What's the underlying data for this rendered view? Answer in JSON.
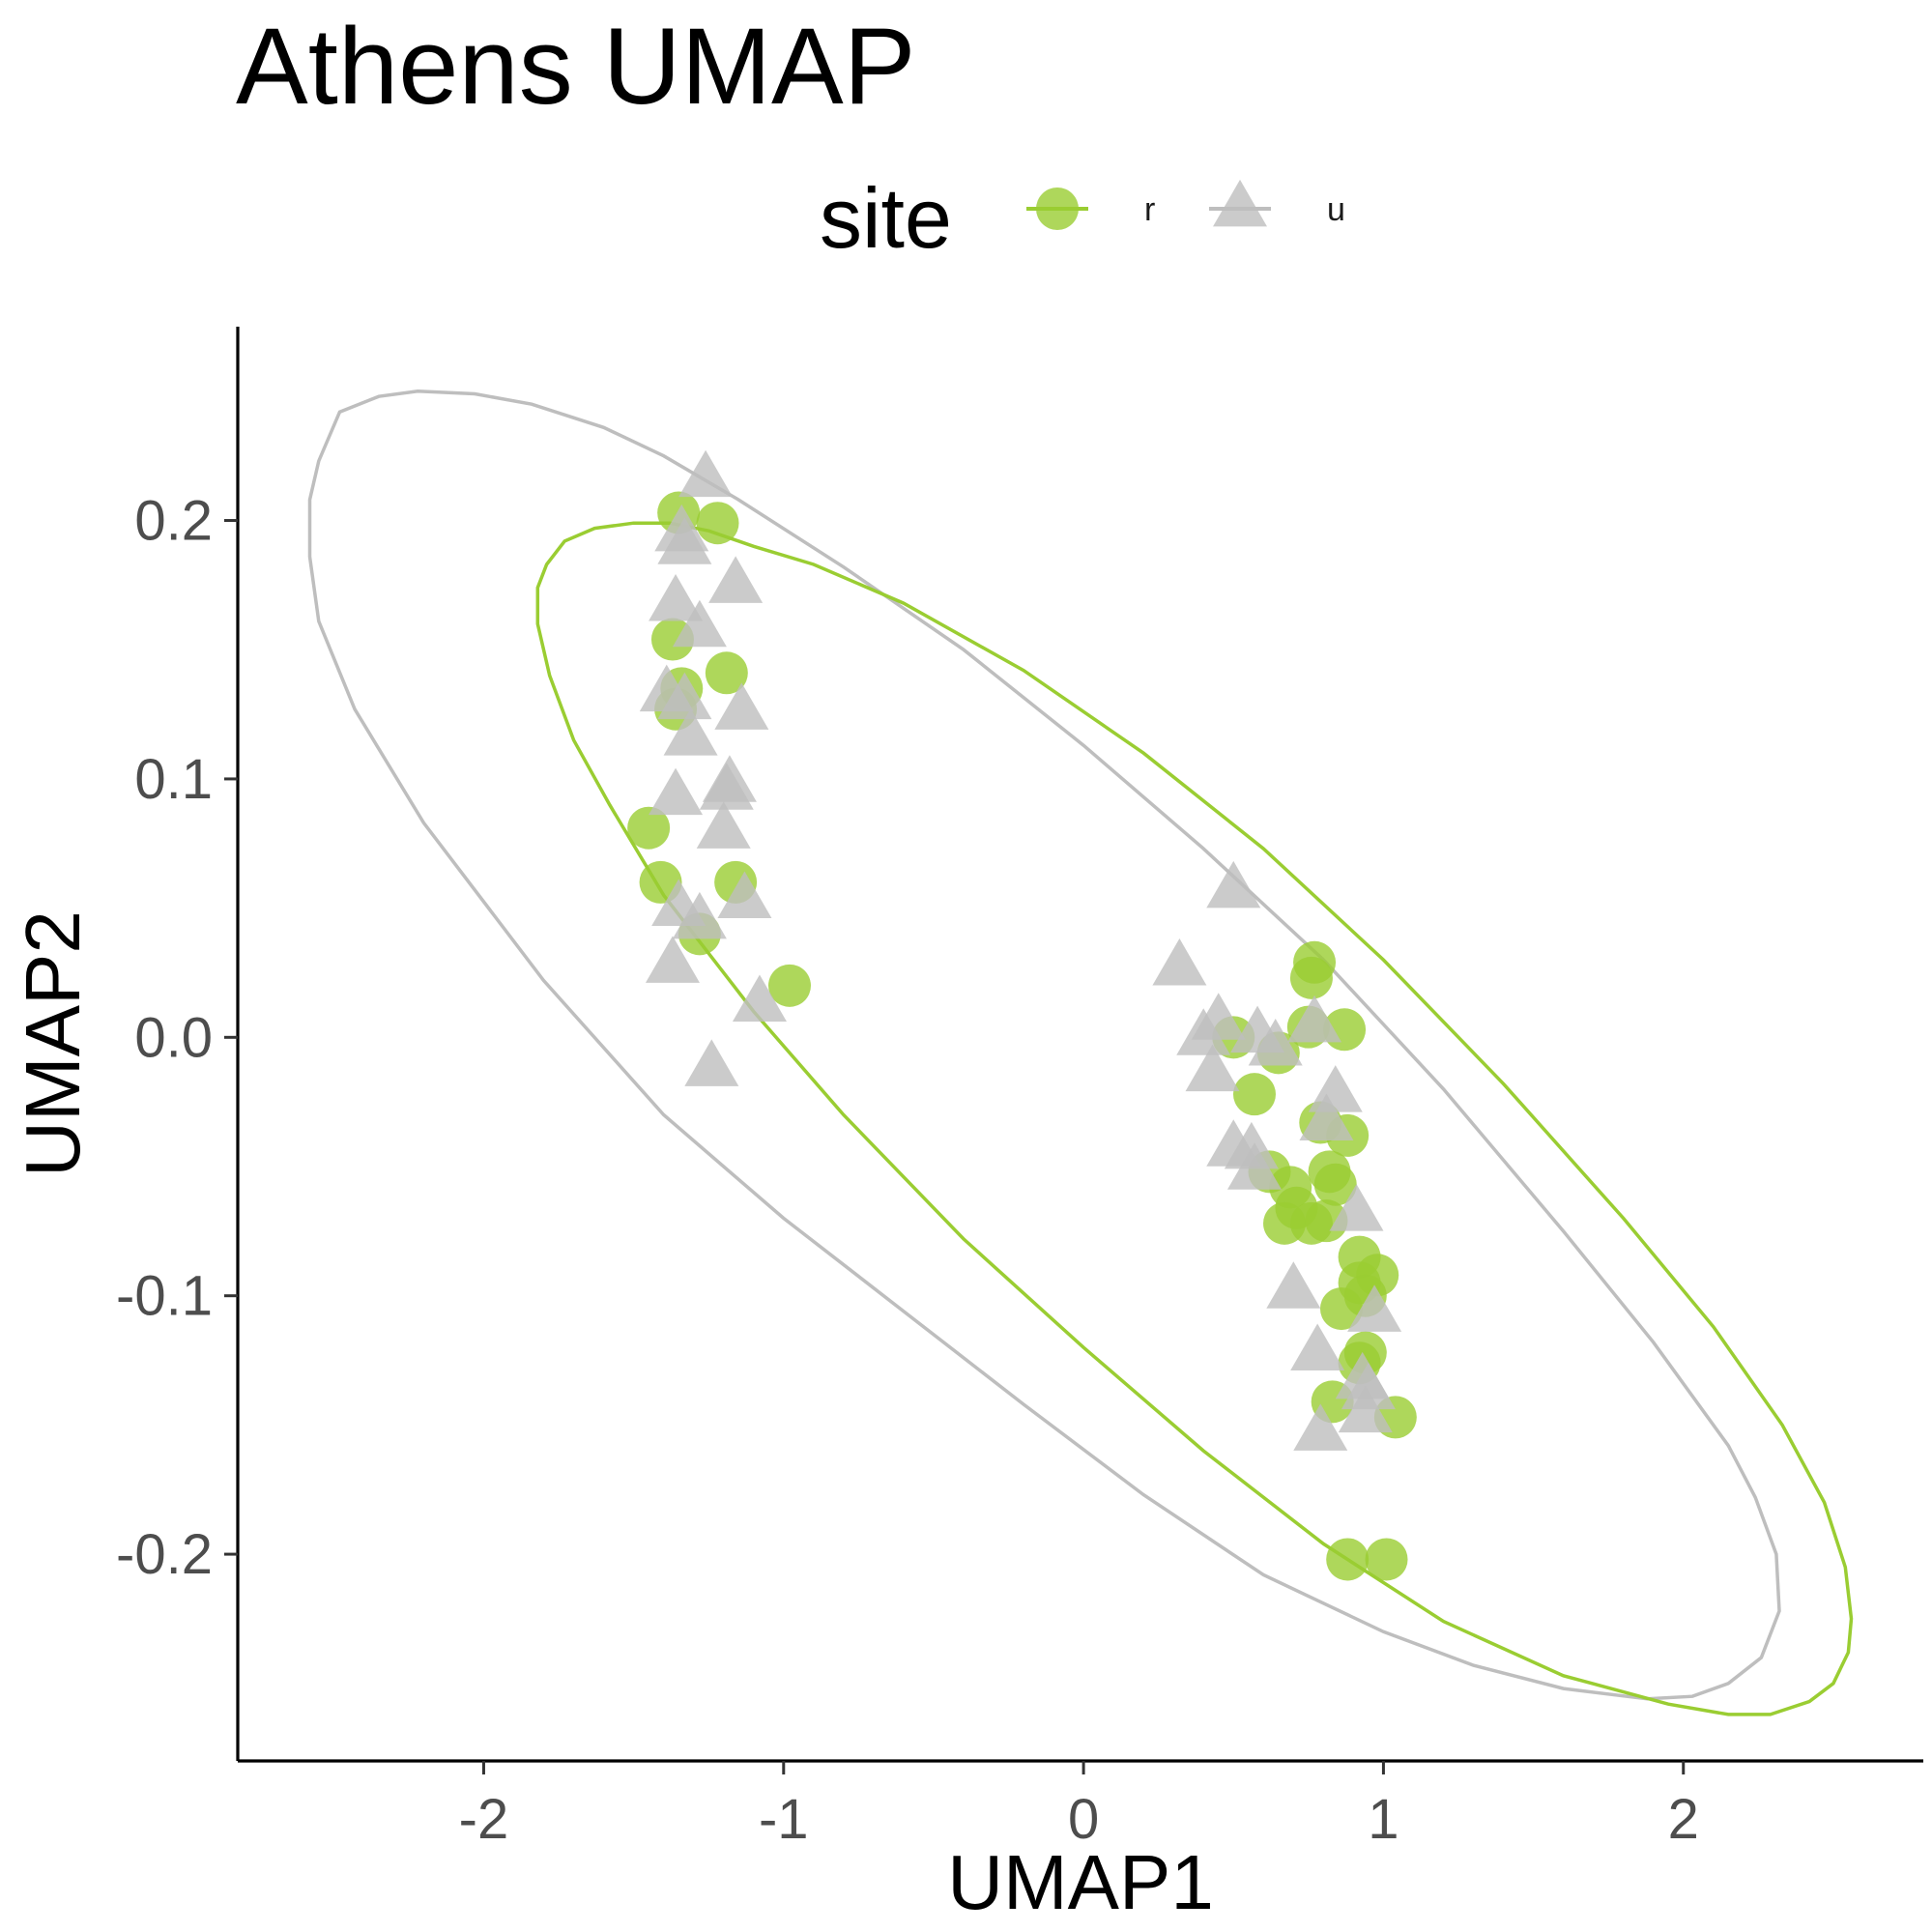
{
  "chart_data": {
    "type": "scatter",
    "title": "Athens UMAP",
    "xlabel": "UMAP1",
    "ylabel": "UMAP2",
    "xlim": [
      -2.82,
      2.8
    ],
    "ylim": [
      -0.28,
      0.275
    ],
    "x_ticks": [
      -2,
      -1,
      0,
      1,
      2
    ],
    "x_tick_labels": [
      "-2",
      "-1",
      "0",
      "1",
      "2"
    ],
    "y_ticks": [
      -0.2,
      -0.1,
      0.0,
      0.1,
      0.2
    ],
    "y_tick_labels": [
      "-0.2",
      "-0.1",
      "0.0",
      "0.1",
      "0.2"
    ],
    "grid": false,
    "legend": {
      "title": "site",
      "placement": "top",
      "entries": [
        {
          "label": "r",
          "shape": "circle",
          "color": "#9acd32"
        },
        {
          "label": "u",
          "shape": "triangle",
          "color": "#bebebe"
        }
      ]
    },
    "series": [
      {
        "name": "r",
        "shape": "circle",
        "color": "#9acd32",
        "points": [
          [
            -1.35,
            0.203
          ],
          [
            -1.22,
            0.199
          ],
          [
            -1.37,
            0.154
          ],
          [
            -1.34,
            0.135
          ],
          [
            -1.36,
            0.127
          ],
          [
            -1.19,
            0.141
          ],
          [
            -1.45,
            0.081
          ],
          [
            -1.41,
            0.06
          ],
          [
            -1.16,
            0.06
          ],
          [
            -1.28,
            0.04
          ],
          [
            -0.98,
            0.02
          ],
          [
            0.5,
            0.0
          ],
          [
            0.65,
            -0.006
          ],
          [
            0.57,
            -0.022
          ],
          [
            0.75,
            0.004
          ],
          [
            0.87,
            0.003
          ],
          [
            0.77,
            0.029
          ],
          [
            0.76,
            0.023
          ],
          [
            0.79,
            -0.033
          ],
          [
            0.88,
            -0.038
          ],
          [
            0.62,
            -0.052
          ],
          [
            0.82,
            -0.052
          ],
          [
            0.84,
            -0.057
          ],
          [
            0.69,
            -0.058
          ],
          [
            0.71,
            -0.066
          ],
          [
            0.67,
            -0.072
          ],
          [
            0.76,
            -0.072
          ],
          [
            0.81,
            -0.071
          ],
          [
            0.92,
            -0.085
          ],
          [
            0.92,
            -0.095
          ],
          [
            0.98,
            -0.092
          ],
          [
            0.94,
            -0.1
          ],
          [
            0.86,
            -0.105
          ],
          [
            0.94,
            -0.122
          ],
          [
            0.92,
            -0.126
          ],
          [
            0.83,
            -0.141
          ],
          [
            1.04,
            -0.147
          ],
          [
            0.88,
            -0.202
          ],
          [
            1.01,
            -0.202
          ]
        ]
      },
      {
        "name": "u",
        "shape": "triangle",
        "color": "#bebebe",
        "points": [
          [
            -1.26,
            0.216
          ],
          [
            -1.34,
            0.195
          ],
          [
            -1.33,
            0.19
          ],
          [
            -1.16,
            0.175
          ],
          [
            -1.36,
            0.168
          ],
          [
            -1.28,
            0.158
          ],
          [
            -1.39,
            0.133
          ],
          [
            -1.33,
            0.13
          ],
          [
            -1.14,
            0.126
          ],
          [
            -1.31,
            0.116
          ],
          [
            -1.36,
            0.093
          ],
          [
            -1.18,
            0.098
          ],
          [
            -1.19,
            0.095
          ],
          [
            -1.2,
            0.08
          ],
          [
            -1.13,
            0.053
          ],
          [
            -1.35,
            0.05
          ],
          [
            -1.28,
            0.045
          ],
          [
            -1.37,
            0.028
          ],
          [
            -1.08,
            0.013
          ],
          [
            -1.24,
            -0.012
          ],
          [
            0.5,
            0.057
          ],
          [
            0.32,
            0.027
          ],
          [
            0.45,
            0.006
          ],
          [
            0.4,
            0.0
          ],
          [
            0.58,
            0.001
          ],
          [
            0.64,
            -0.004
          ],
          [
            0.77,
            0.005
          ],
          [
            0.43,
            -0.014
          ],
          [
            0.84,
            -0.022
          ],
          [
            0.81,
            -0.033
          ],
          [
            0.5,
            -0.043
          ],
          [
            0.56,
            -0.044
          ],
          [
            0.57,
            -0.052
          ],
          [
            0.91,
            -0.068
          ],
          [
            0.7,
            -0.098
          ],
          [
            0.97,
            -0.107
          ],
          [
            0.78,
            -0.122
          ],
          [
            0.93,
            -0.133
          ],
          [
            0.95,
            -0.137
          ],
          [
            0.94,
            -0.146
          ],
          [
            0.79,
            -0.153
          ]
        ]
      }
    ],
    "ellipses": [
      {
        "series": "u",
        "color": "#bebebe",
        "points": [
          [
            -2.22,
            0.25
          ],
          [
            -2.03,
            0.249
          ],
          [
            -1.84,
            0.245
          ],
          [
            -1.6,
            0.236
          ],
          [
            -1.4,
            0.225
          ],
          [
            -1.15,
            0.208
          ],
          [
            -0.8,
            0.182
          ],
          [
            -0.4,
            0.15
          ],
          [
            0.0,
            0.113
          ],
          [
            0.4,
            0.073
          ],
          [
            0.8,
            0.03
          ],
          [
            1.2,
            -0.02
          ],
          [
            1.6,
            -0.075
          ],
          [
            1.9,
            -0.118
          ],
          [
            2.15,
            -0.158
          ],
          [
            2.24,
            -0.178
          ],
          [
            2.31,
            -0.2
          ],
          [
            2.32,
            -0.222
          ],
          [
            2.26,
            -0.24
          ],
          [
            2.15,
            -0.25
          ],
          [
            2.03,
            -0.255
          ],
          [
            1.88,
            -0.256
          ],
          [
            1.6,
            -0.252
          ],
          [
            1.3,
            -0.243
          ],
          [
            1.0,
            -0.23
          ],
          [
            0.6,
            -0.208
          ],
          [
            0.2,
            -0.177
          ],
          [
            -0.2,
            -0.142
          ],
          [
            -0.6,
            -0.106
          ],
          [
            -1.0,
            -0.07
          ],
          [
            -1.4,
            -0.03
          ],
          [
            -1.8,
            0.022
          ],
          [
            -2.2,
            0.083
          ],
          [
            -2.43,
            0.127
          ],
          [
            -2.55,
            0.161
          ],
          [
            -2.58,
            0.186
          ],
          [
            -2.58,
            0.208
          ],
          [
            -2.55,
            0.223
          ],
          [
            -2.48,
            0.242
          ],
          [
            -2.35,
            0.248
          ]
        ]
      },
      {
        "series": "r",
        "color": "#9acd32",
        "points": [
          [
            -1.5,
            0.199
          ],
          [
            -1.63,
            0.197
          ],
          [
            -1.73,
            0.192
          ],
          [
            -1.79,
            0.183
          ],
          [
            -1.82,
            0.174
          ],
          [
            -1.82,
            0.16
          ],
          [
            -1.78,
            0.14
          ],
          [
            -1.7,
            0.115
          ],
          [
            -1.58,
            0.09
          ],
          [
            -1.4,
            0.055
          ],
          [
            -1.1,
            0.01
          ],
          [
            -0.8,
            -0.03
          ],
          [
            -0.4,
            -0.078
          ],
          [
            0.0,
            -0.12
          ],
          [
            0.4,
            -0.16
          ],
          [
            0.8,
            -0.196
          ],
          [
            1.2,
            -0.226
          ],
          [
            1.6,
            -0.247
          ],
          [
            1.95,
            -0.258
          ],
          [
            2.15,
            -0.262
          ],
          [
            2.29,
            -0.262
          ],
          [
            2.42,
            -0.257
          ],
          [
            2.5,
            -0.25
          ],
          [
            2.55,
            -0.238
          ],
          [
            2.56,
            -0.225
          ],
          [
            2.54,
            -0.205
          ],
          [
            2.47,
            -0.18
          ],
          [
            2.33,
            -0.15
          ],
          [
            2.1,
            -0.112
          ],
          [
            1.8,
            -0.07
          ],
          [
            1.4,
            -0.018
          ],
          [
            1.0,
            0.03
          ],
          [
            0.6,
            0.073
          ],
          [
            0.2,
            0.11
          ],
          [
            -0.2,
            0.142
          ],
          [
            -0.6,
            0.168
          ],
          [
            -0.9,
            0.183
          ],
          [
            -1.1,
            0.19
          ],
          [
            -1.25,
            0.196
          ],
          [
            -1.38,
            0.199
          ]
        ]
      }
    ]
  }
}
